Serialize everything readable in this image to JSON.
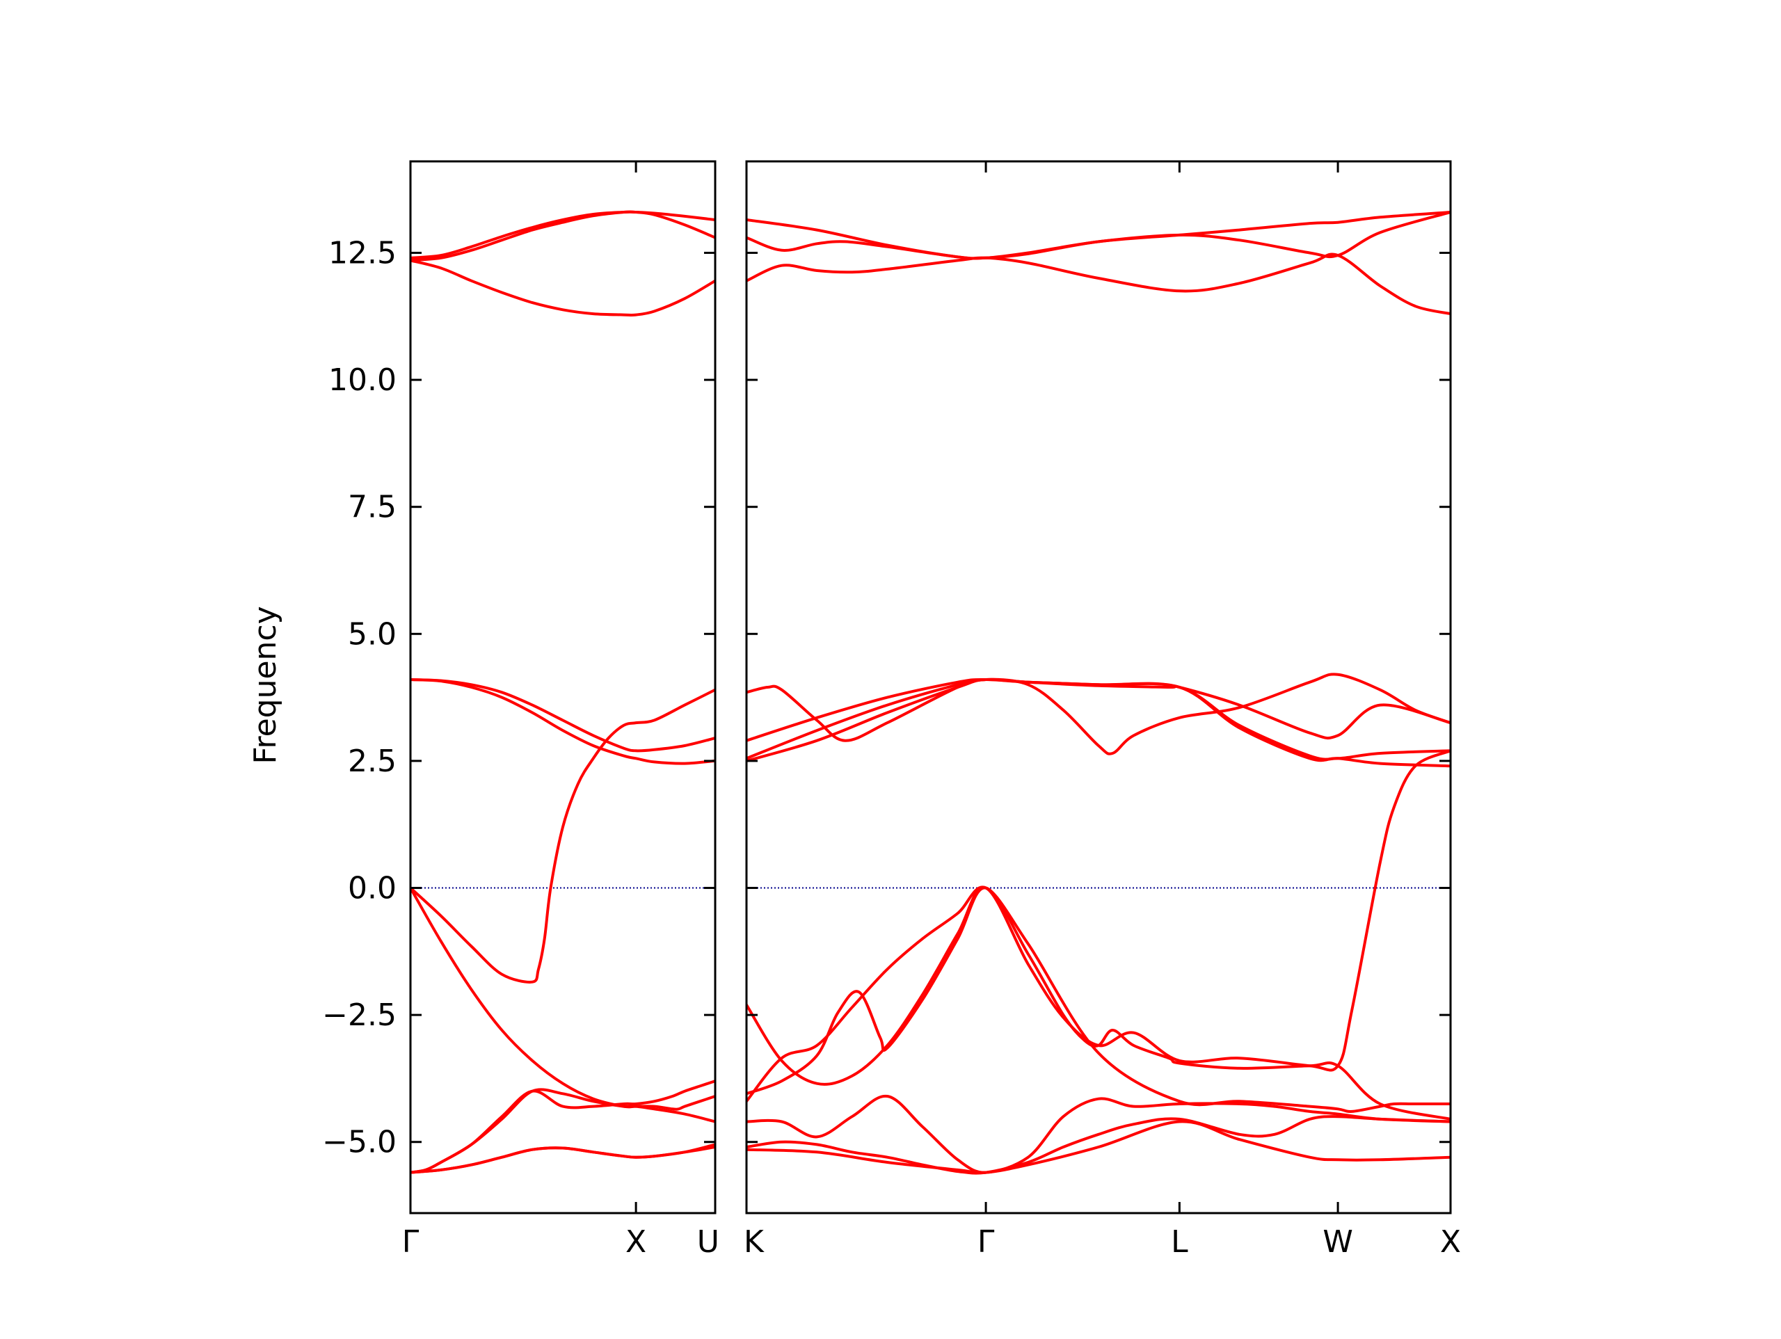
{
  "chart_data": {
    "type": "line",
    "ylabel": "Frequency",
    "ylim": [
      -6.4,
      14.3
    ],
    "yticks": [
      {
        "value": -5.0,
        "label": "−5.0"
      },
      {
        "value": -2.5,
        "label": "−2.5"
      },
      {
        "value": 0.0,
        "label": "0.0"
      },
      {
        "value": 2.5,
        "label": "2.5"
      },
      {
        "value": 5.0,
        "label": "5.0"
      },
      {
        "value": 7.5,
        "label": "7.5"
      },
      {
        "value": 10.0,
        "label": "10.0"
      },
      {
        "value": 12.5,
        "label": "12.5"
      }
    ],
    "line_color": "#ff0000",
    "zero_line_color": "#00008b",
    "panels": [
      {
        "xlim": [
          0,
          1
        ],
        "xticks": [
          {
            "value": 0,
            "label": "Γ"
          },
          {
            "value": 0.74,
            "label": "X"
          },
          {
            "value": 1,
            "label": "U"
          }
        ],
        "series": [
          {
            "x": [
              0,
              0.1,
              0.2,
              0.3,
              0.4,
              0.5,
              0.6,
              0.7,
              0.74,
              0.8,
              0.9,
              1.0
            ],
            "y": [
              12.4,
              12.45,
              12.62,
              12.82,
              13.0,
              13.15,
              13.26,
              13.3,
              13.3,
              13.28,
              13.22,
              13.15
            ]
          },
          {
            "x": [
              0,
              0.1,
              0.2,
              0.3,
              0.4,
              0.5,
              0.6,
              0.7,
              0.74,
              0.8,
              0.9,
              1.0
            ],
            "y": [
              12.35,
              12.4,
              12.55,
              12.75,
              12.95,
              13.1,
              13.23,
              13.3,
              13.3,
              13.25,
              13.05,
              12.8
            ]
          },
          {
            "x": [
              0,
              0.1,
              0.2,
              0.3,
              0.4,
              0.5,
              0.6,
              0.7,
              0.74,
              0.8,
              0.9,
              1.0
            ],
            "y": [
              12.35,
              12.2,
              11.95,
              11.72,
              11.52,
              11.38,
              11.3,
              11.28,
              11.28,
              11.35,
              11.6,
              11.95
            ]
          },
          {
            "x": [
              0,
              0.1,
              0.2,
              0.3,
              0.4,
              0.5,
              0.6,
              0.7,
              0.74,
              0.8,
              0.9,
              1.0
            ],
            "y": [
              4.1,
              4.07,
              3.95,
              3.75,
              3.45,
              3.1,
              2.8,
              2.6,
              2.55,
              2.48,
              2.45,
              2.5
            ]
          },
          {
            "x": [
              0,
              0.1,
              0.2,
              0.3,
              0.4,
              0.5,
              0.6,
              0.7,
              0.74,
              0.8,
              0.9,
              1.0
            ],
            "y": [
              4.1,
              4.08,
              4.0,
              3.85,
              3.6,
              3.3,
              3.0,
              2.75,
              2.7,
              2.72,
              2.8,
              2.95
            ]
          },
          {
            "x": [
              0,
              0.1,
              0.2,
              0.3,
              0.4,
              0.42,
              0.44,
              0.46,
              0.5,
              0.55,
              0.6,
              0.65,
              0.7,
              0.74,
              0.8,
              0.9,
              1.0
            ],
            "y": [
              0,
              -0.55,
              -1.15,
              -1.7,
              -1.85,
              -1.6,
              -1.0,
              0.0,
              1.2,
              2.05,
              2.55,
              2.95,
              3.2,
              3.25,
              3.3,
              3.6,
              3.9
            ]
          },
          {
            "x": [
              0,
              0.1,
              0.2,
              0.3,
              0.4,
              0.5,
              0.6,
              0.7,
              0.74,
              0.8,
              0.86,
              0.88,
              0.9,
              0.95,
              1.0
            ],
            "y": [
              0,
              -1.05,
              -2.0,
              -2.8,
              -3.4,
              -3.85,
              -4.15,
              -4.3,
              -4.3,
              -4.3,
              -4.35,
              -4.35,
              -4.3,
              -4.2,
              -4.1
            ]
          },
          {
            "x": [
              0,
              0.05,
              0.1,
              0.2,
              0.3,
              0.4,
              0.5,
              0.6,
              0.7,
              0.74,
              0.8,
              0.9,
              1.0
            ],
            "y": [
              -5.6,
              -5.55,
              -5.4,
              -5.05,
              -4.55,
              -4.0,
              -4.05,
              -4.2,
              -4.3,
              -4.3,
              -4.35,
              -4.45,
              -4.6
            ]
          },
          {
            "x": [
              0,
              0.05,
              0.1,
              0.2,
              0.3,
              0.4,
              0.5,
              0.6,
              0.7,
              0.74,
              0.8,
              0.86,
              0.9,
              0.95,
              1.0
            ],
            "y": [
              -5.6,
              -5.55,
              -5.4,
              -5.05,
              -4.5,
              -4.0,
              -4.3,
              -4.3,
              -4.25,
              -4.25,
              -4.2,
              -4.1,
              -4.0,
              -3.9,
              -3.8
            ]
          },
          {
            "x": [
              0,
              0.1,
              0.2,
              0.3,
              0.4,
              0.5,
              0.6,
              0.7,
              0.74,
              0.8,
              0.9,
              1.0
            ],
            "y": [
              -5.6,
              -5.55,
              -5.45,
              -5.3,
              -5.15,
              -5.12,
              -5.2,
              -5.28,
              -5.3,
              -5.28,
              -5.2,
              -5.05
            ]
          },
          {
            "x": [
              0,
              0.1,
              0.2,
              0.3,
              0.4,
              0.5,
              0.6,
              0.7,
              0.74,
              0.8,
              0.9,
              1.0
            ],
            "y": [
              -5.6,
              -5.55,
              -5.45,
              -5.3,
              -5.15,
              -5.12,
              -5.2,
              -5.28,
              -5.3,
              -5.28,
              -5.2,
              -5.1
            ]
          }
        ]
      },
      {
        "xlim": [
          0,
          1
        ],
        "xticks": [
          {
            "value": 0,
            "label": "K"
          },
          {
            "value": 0.34,
            "label": "Γ"
          },
          {
            "value": 0.615,
            "label": "L"
          },
          {
            "value": 0.84,
            "label": "W"
          },
          {
            "value": 1,
            "label": "X"
          }
        ],
        "series": [
          {
            "x": [
              0,
              0.1,
              0.2,
              0.3,
              0.34,
              0.4,
              0.5,
              0.615,
              0.7,
              0.8,
              0.84,
              0.9,
              1.0
            ],
            "y": [
              13.15,
              12.95,
              12.65,
              12.42,
              12.4,
              12.48,
              12.72,
              12.85,
              12.95,
              13.08,
              13.1,
              13.2,
              13.3
            ]
          },
          {
            "x": [
              0,
              0.05,
              0.1,
              0.14,
              0.2,
              0.3,
              0.34,
              0.4,
              0.5,
              0.615,
              0.7,
              0.8,
              0.84,
              0.9,
              1.0
            ],
            "y": [
              12.8,
              12.55,
              12.68,
              12.72,
              12.62,
              12.42,
              12.4,
              12.5,
              12.72,
              12.85,
              12.75,
              12.5,
              12.45,
              12.9,
              13.3
            ]
          },
          {
            "x": [
              0,
              0.05,
              0.1,
              0.15,
              0.2,
              0.3,
              0.34,
              0.4,
              0.5,
              0.615,
              0.7,
              0.8,
              0.84,
              0.9,
              0.95,
              1.0
            ],
            "y": [
              11.95,
              12.25,
              12.15,
              12.12,
              12.18,
              12.35,
              12.4,
              12.3,
              12.0,
              11.75,
              11.9,
              12.3,
              12.45,
              11.85,
              11.45,
              11.3
            ]
          },
          {
            "x": [
              0,
              0.03,
              0.05,
              0.1,
              0.14,
              0.2,
              0.3,
              0.34,
              0.4,
              0.5,
              0.6,
              0.615,
              0.7,
              0.8,
              0.84,
              0.9,
              1.0
            ],
            "y": [
              3.85,
              3.95,
              3.9,
              3.3,
              2.9,
              3.25,
              3.95,
              4.1,
              4.05,
              3.98,
              3.95,
              3.95,
              3.6,
              3.05,
              3.0,
              3.6,
              3.25
            ]
          },
          {
            "x": [
              0,
              0.1,
              0.2,
              0.3,
              0.34,
              0.4,
              0.45,
              0.5,
              0.52,
              0.55,
              0.615,
              0.7,
              0.8,
              0.84,
              0.9,
              0.95,
              1.0
            ],
            "y": [
              2.5,
              2.9,
              3.45,
              3.95,
              4.1,
              4.0,
              3.5,
              2.8,
              2.65,
              3.0,
              3.35,
              3.55,
              4.05,
              4.2,
              3.9,
              3.5,
              3.25
            ]
          },
          {
            "x": [
              0,
              0.1,
              0.2,
              0.3,
              0.34,
              0.4,
              0.5,
              0.615,
              0.7,
              0.8,
              0.84,
              0.9,
              1.0
            ],
            "y": [
              2.9,
              3.35,
              3.75,
              4.05,
              4.1,
              4.05,
              4.0,
              3.95,
              3.2,
              2.6,
              2.55,
              2.65,
              2.7
            ]
          },
          {
            "x": [
              0,
              0.1,
              0.2,
              0.3,
              0.34,
              0.4,
              0.5,
              0.615,
              0.7,
              0.8,
              0.84,
              0.9,
              1.0
            ],
            "y": [
              2.55,
              3.1,
              3.6,
              4.0,
              4.1,
              4.05,
              4.0,
              3.95,
              3.15,
              2.55,
              2.55,
              2.45,
              2.4
            ]
          },
          {
            "x": [
              0,
              0.05,
              0.1,
              0.15,
              0.2,
              0.25,
              0.3,
              0.34,
              0.4,
              0.5,
              0.615,
              0.7,
              0.8,
              0.84,
              0.86,
              0.9,
              0.92,
              0.95,
              1.0
            ],
            "y": [
              -4.2,
              -3.35,
              -3.1,
              -2.35,
              -1.6,
              -1.0,
              -0.5,
              0.0,
              -1.1,
              -3.25,
              -4.2,
              -4.2,
              -4.3,
              -4.35,
              -4.4,
              -4.3,
              -4.25,
              -4.25,
              -4.25
            ]
          },
          {
            "x": [
              0,
              0.05,
              0.1,
              0.15,
              0.2,
              0.25,
              0.3,
              0.34,
              0.4,
              0.45,
              0.5,
              0.55,
              0.615,
              0.7,
              0.8,
              0.84,
              0.86,
              0.9,
              0.92,
              0.95,
              1.0
            ],
            "y": [
              -2.3,
              -3.4,
              -3.85,
              -3.7,
              -3.1,
              -2.1,
              -0.9,
              0.0,
              -1.5,
              -2.55,
              -3.1,
              -2.85,
              -3.4,
              -3.35,
              -3.5,
              -3.5,
              -2.4,
              0.5,
              1.6,
              2.4,
              2.7
            ]
          },
          {
            "x": [
              0,
              0.05,
              0.1,
              0.13,
              0.16,
              0.19,
              0.2,
              0.25,
              0.3,
              0.34,
              0.4,
              0.45,
              0.48,
              0.5,
              0.52,
              0.55,
              0.6,
              0.615,
              0.7,
              0.8,
              0.84,
              0.9,
              1.0
            ],
            "y": [
              -4.05,
              -3.8,
              -3.3,
              -2.45,
              -2.05,
              -2.95,
              -3.15,
              -2.2,
              -1.0,
              0.0,
              -1.3,
              -2.5,
              -3.0,
              -3.1,
              -2.8,
              -3.1,
              -3.35,
              -3.45,
              -3.55,
              -3.5,
              -3.5,
              -4.25,
              -4.55
            ]
          },
          {
            "x": [
              0,
              0.05,
              0.1,
              0.15,
              0.2,
              0.25,
              0.3,
              0.34,
              0.4,
              0.45,
              0.5,
              0.55,
              0.615,
              0.7,
              0.75,
              0.8,
              0.84,
              0.9,
              1.0
            ],
            "y": [
              -4.6,
              -4.6,
              -4.9,
              -4.5,
              -4.1,
              -4.7,
              -5.35,
              -5.6,
              -5.3,
              -4.5,
              -4.15,
              -4.3,
              -4.25,
              -4.25,
              -4.3,
              -4.4,
              -4.45,
              -4.55,
              -4.6
            ]
          },
          {
            "x": [
              0,
              0.05,
              0.1,
              0.15,
              0.2,
              0.25,
              0.3,
              0.34,
              0.4,
              0.45,
              0.5,
              0.55,
              0.615,
              0.7,
              0.75,
              0.8,
              0.84,
              0.9,
              1.0
            ],
            "y": [
              -5.1,
              -5.0,
              -5.05,
              -5.2,
              -5.3,
              -5.45,
              -5.58,
              -5.6,
              -5.4,
              -5.1,
              -4.85,
              -4.65,
              -4.55,
              -4.85,
              -4.85,
              -4.55,
              -4.5,
              -4.55,
              -4.6
            ]
          },
          {
            "x": [
              0,
              0.1,
              0.2,
              0.3,
              0.34,
              0.4,
              0.5,
              0.615,
              0.7,
              0.8,
              0.84,
              0.9,
              1.0
            ],
            "y": [
              -5.15,
              -5.2,
              -5.4,
              -5.55,
              -5.6,
              -5.45,
              -5.1,
              -4.6,
              -4.95,
              -5.3,
              -5.35,
              -5.35,
              -5.3
            ]
          }
        ]
      }
    ]
  }
}
